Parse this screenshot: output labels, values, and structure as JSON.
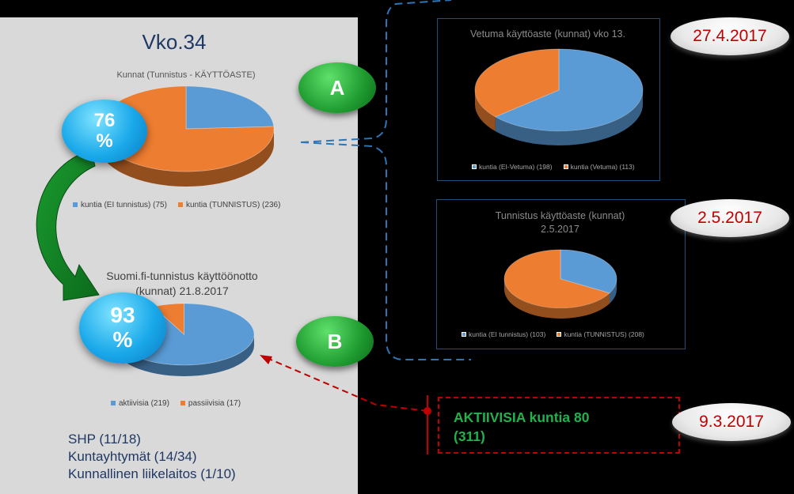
{
  "left": {
    "title": "Vko.34",
    "pie1": {
      "title": "Kunnat (Tunnistus - KÄYTTÖASTE)",
      "legend": [
        "kuntia (EI tunnistus) (75)",
        "kuntia (TUNNISTUS) (236)"
      ]
    },
    "bubble1": {
      "line1": "76",
      "line2": "%"
    },
    "pie2": {
      "title_line1": "Suomi.fi-tunnistus käyttöönotto",
      "title_line2": "(kunnat) 21.8.2017",
      "legend": [
        "aktiivisia (219)",
        "passiivisia (17)"
      ]
    },
    "bubble2": {
      "line1": "93",
      "line2": "%"
    },
    "bottom_lines": [
      "SHP (11/18)",
      "Kuntayhtymät (14/34)",
      "Kunnallinen liikelaitos (1/10)"
    ]
  },
  "markers": {
    "a": "A",
    "b": "B"
  },
  "right": {
    "chart1": {
      "title": "Vetuma käyttöaste (kunnat) vko 13.",
      "legend": [
        "kuntia (EI-Vetuma) (198)",
        "kuntia (Vetuma) (113)"
      ]
    },
    "chart2": {
      "title_line1": "Tunnistus käyttöaste (kunnat)",
      "title_line2": "2.5.2017",
      "legend": [
        "kuntia (EI tunnistus) (103)",
        "kuntia (TUNNISTUS) (208)"
      ]
    },
    "aktiivisia": {
      "line1": "AKTIIVISIA kuntia 80",
      "line2": "(311)"
    }
  },
  "dates": [
    "27.4.2017",
    "2.5.2017",
    "9.3.2017"
  ],
  "colors": {
    "blue": "#5b9bd5",
    "orange": "#ed7d31",
    "dark_blue": "#1f3864",
    "red": "#c00000",
    "green": "#22b14c"
  },
  "chart_data": [
    {
      "type": "pie",
      "title": "Kunnat (Tunnistus - KÄYTTÖASTE)",
      "categories": [
        "kuntia (EI tunnistus)",
        "kuntia (TUNNISTUS)"
      ],
      "values": [
        75,
        236
      ],
      "colors": [
        "#5b9bd5",
        "#ed7d31"
      ],
      "legend": "bottom"
    },
    {
      "type": "pie",
      "title": "Suomi.fi-tunnistus käyttöönotto (kunnat) 21.8.2017",
      "categories": [
        "aktiivisia",
        "passiivisia"
      ],
      "values": [
        219,
        17
      ],
      "colors": [
        "#5b9bd5",
        "#ed7d31"
      ],
      "legend": "bottom"
    },
    {
      "type": "pie",
      "title": "Vetuma käyttöaste (kunnat) vko 13.",
      "categories": [
        "kuntia (EI-Vetuma)",
        "kuntia (Vetuma)"
      ],
      "values": [
        198,
        113
      ],
      "colors": [
        "#5b9bd5",
        "#ed7d31"
      ],
      "legend": "bottom"
    },
    {
      "type": "pie",
      "title": "Tunnistus käyttöaste (kunnat) 2.5.2017",
      "categories": [
        "kuntia (EI tunnistus)",
        "kuntia (TUNNISTUS)"
      ],
      "values": [
        103,
        208
      ],
      "colors": [
        "#5b9bd5",
        "#ed7d31"
      ],
      "legend": "bottom"
    }
  ]
}
